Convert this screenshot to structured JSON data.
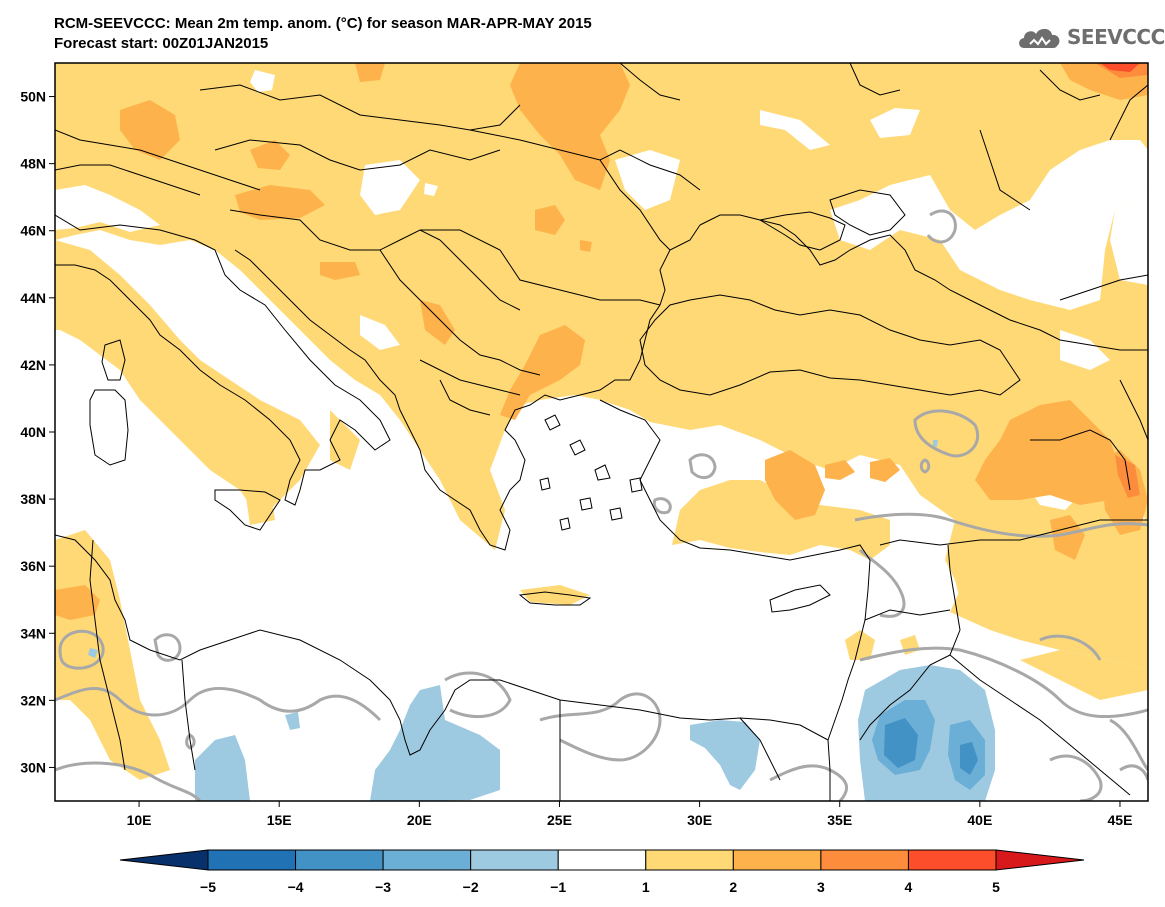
{
  "header": {
    "title_line1": "RCM-SEEVCCC: Mean 2m temp. anom. (°C) for season MAR-APR-MAY 2015",
    "title_line2": "Forecast start: 00Z01JAN2015"
  },
  "logo": {
    "text": "SEEVCCC",
    "icon": "cloud-logo-icon"
  },
  "map": {
    "lon_range": [
      7,
      46
    ],
    "lat_range": [
      29,
      51
    ],
    "lat_ticks": [
      {
        "value": 50,
        "label": "50N"
      },
      {
        "value": 48,
        "label": "48N"
      },
      {
        "value": 46,
        "label": "46N"
      },
      {
        "value": 44,
        "label": "44N"
      },
      {
        "value": 42,
        "label": "42N"
      },
      {
        "value": 40,
        "label": "40N"
      },
      {
        "value": 38,
        "label": "38N"
      },
      {
        "value": 36,
        "label": "36N"
      },
      {
        "value": 34,
        "label": "34N"
      },
      {
        "value": 32,
        "label": "32N"
      },
      {
        "value": 30,
        "label": "30N"
      }
    ],
    "lon_ticks": [
      {
        "value": 10,
        "label": "10E"
      },
      {
        "value": 15,
        "label": "15E"
      },
      {
        "value": 20,
        "label": "20E"
      },
      {
        "value": 25,
        "label": "25E"
      },
      {
        "value": 30,
        "label": "30E"
      },
      {
        "value": 35,
        "label": "35E"
      },
      {
        "value": 40,
        "label": "40E"
      },
      {
        "value": 45,
        "label": "45E"
      }
    ],
    "colors": {
      "water_bg": "#ffffff",
      "anom_1_2": "#fed976",
      "anom_2_3": "#feb24c",
      "anom_3_4": "#fd8d3c",
      "anom_4_5": "#fc4e2a",
      "anom_neg1_neg2": "#9ecae1",
      "anom_neg2_neg3": "#6baed6",
      "anom_neg3_neg4": "#4292c6",
      "contour": "#a8a8a8",
      "border": "#000000"
    }
  },
  "colorbar": {
    "boundaries": [
      "−5",
      "−4",
      "−3",
      "−2",
      "−1",
      "1",
      "2",
      "3",
      "4",
      "5"
    ],
    "colors": [
      "#08519c",
      "#2171b5",
      "#4292c6",
      "#6baed6",
      "#9ecae1",
      "#ffffff",
      "#fed976",
      "#feb24c",
      "#fd8d3c",
      "#fc4e2a",
      "#e31a1c"
    ],
    "low_extend_color": "#08306b",
    "high_extend_color": "#d7191c"
  }
}
